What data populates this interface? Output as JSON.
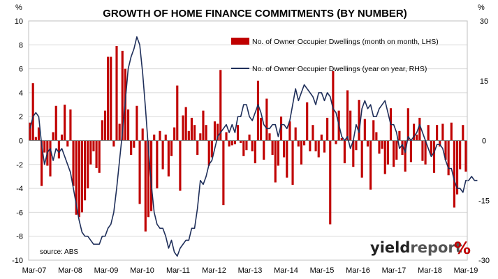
{
  "chart_data": {
    "type": "bar+line",
    "title": "GROWTH OF HOME FINANCE COMMITMENTS (BY NUMBER)",
    "source": "source: ABS",
    "left_axis": {
      "unit": "%",
      "ylim": [
        -10,
        10
      ],
      "ticks": [
        -10,
        -8,
        -6,
        -4,
        -2,
        0,
        2,
        4,
        6,
        8,
        10
      ]
    },
    "right_axis": {
      "unit": "%",
      "ylim": [
        -30,
        30
      ],
      "ticks": [
        -30,
        -15,
        0,
        15,
        30
      ]
    },
    "x_tick_labels": [
      "Mar-07",
      "Mar-08",
      "Mar-09",
      "Mar-10",
      "Mar-11",
      "Mar-12",
      "Mar-13",
      "Mar-14",
      "Mar-15",
      "Mar-16",
      "Mar-17",
      "Mar-18",
      "Mar-19"
    ],
    "grid": "horizontal",
    "legend": "top-right",
    "series": [
      {
        "name": "No. of Owner Occupier Dwellings (month on month, LHS)",
        "type": "bar",
        "axis": "left",
        "color": "#c00000",
        "values": [
          1.5,
          4.8,
          0.3,
          1.1,
          -3.8,
          -1.0,
          -2.1,
          -3.0,
          0.7,
          2.9,
          -1.5,
          0.5,
          3.0,
          -0.5,
          2.6,
          -3.8,
          -6.2,
          -6.4,
          -6.0,
          -5.0,
          -4.0,
          -2.0,
          -0.9,
          -2.3,
          -2.7,
          1.7,
          2.5,
          7.0,
          7.0,
          -0.5,
          7.9,
          1.4,
          7.5,
          6.0,
          2.6,
          -1.2,
          -0.6,
          2.9,
          -5.3,
          1.0,
          -7.6,
          -6.4,
          -5.9,
          0.5,
          -4.0,
          0.8,
          -2.4,
          0.5,
          -3.0,
          -1.3,
          1.1,
          4.6,
          -4.2,
          2.1,
          2.8,
          0.8,
          1.9,
          1.3,
          -1.2,
          0.6,
          2.5,
          1.3,
          -2.1,
          -1.4,
          1.6,
          1.4,
          5.9,
          -5.4,
          0.7,
          -0.5,
          -0.4,
          -0.3,
          1.3,
          -0.2,
          -1.3,
          -0.8,
          0.5,
          -0.9,
          -1.9,
          5.0,
          1.9,
          -1.6,
          3.5,
          0.6,
          -1.2,
          -3.5,
          -2.1,
          2.0,
          -1.4,
          -3.1,
          1.6,
          -3.7,
          1.1,
          -0.5,
          -2.0,
          -0.4,
          3.2,
          -0.9,
          1.3,
          -0.9,
          -1.4,
          0.5,
          -1.0,
          1.9,
          -7.0,
          5.8,
          -0.3,
          2.5,
          0.2,
          -1.9,
          4.2,
          2.5,
          -2.2,
          -0.8,
          3.4,
          -3.1,
          1.8,
          -0.5,
          -4.1,
          1.7,
          0.7,
          -1.1,
          -0.7,
          -2.8,
          -2.0,
          2.7,
          -2.2,
          -1.6,
          0.8,
          -1.2,
          -2.6,
          2.7,
          -1.8,
          1.4,
          0.5,
          1.9,
          -1.7,
          -2.0,
          1.3,
          -1.2,
          -2.7,
          1.3,
          -0.5,
          1.4,
          -1.6,
          -2.9,
          1.5,
          -5.6,
          -4.5,
          -2.4,
          1.3,
          -2.6
        ]
      },
      {
        "name": "No. of Owner Occupier Dwellings (year on year, RHS)",
        "type": "line",
        "axis": "right",
        "color": "#1f2f5a",
        "values": [
          3,
          6,
          7,
          6,
          -1,
          -6,
          -3,
          -2,
          -5,
          -2,
          -3,
          -2,
          -4,
          -6,
          -8,
          -12,
          -16,
          -20,
          -23,
          -24,
          -24,
          -25,
          -26,
          -26,
          -26,
          -24,
          -24,
          -22,
          -21,
          -18,
          -12,
          -5,
          2,
          10,
          18,
          21,
          23,
          26,
          24,
          17,
          8,
          -2,
          -11,
          -18,
          -21,
          -22,
          -22,
          -24,
          -27,
          -25,
          -28,
          -29,
          -27,
          -26,
          -25,
          -25,
          -22,
          -22,
          -17,
          -10,
          -11,
          -9,
          -6,
          -5,
          -2,
          1,
          2,
          3,
          4,
          2,
          4,
          2,
          6,
          6,
          9,
          9,
          6,
          5,
          7,
          9,
          7,
          4,
          3,
          3,
          4,
          4,
          1,
          4,
          4,
          3,
          5,
          9,
          13,
          10,
          12,
          14,
          13,
          12,
          11,
          9,
          12,
          12,
          10,
          12,
          11,
          8,
          7,
          4,
          1,
          0,
          1,
          -2,
          0,
          4,
          2,
          8,
          10,
          8,
          9,
          6,
          6,
          8,
          9,
          10,
          7,
          4,
          4,
          2,
          -2,
          -1,
          -3,
          1,
          0,
          1,
          2,
          4,
          2,
          0,
          -2,
          -4,
          -3,
          -1,
          -1,
          -2,
          -5,
          -7,
          -7,
          -10,
          -12,
          -12,
          -13,
          -10,
          -10,
          -9,
          -10,
          -10
        ]
      }
    ]
  }
}
